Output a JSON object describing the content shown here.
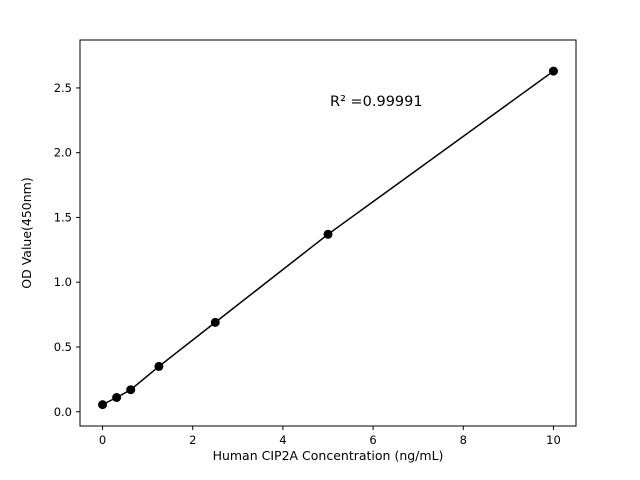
{
  "figure": {
    "background": "#ffffff"
  },
  "chart_data": {
    "type": "scatter",
    "title": "",
    "xlabel": "Human CIP2A Concentration (ng/mL)",
    "ylabel": "OD Value(450nm)",
    "x": [
      0,
      0.3125,
      0.625,
      1.25,
      2.5,
      5,
      10
    ],
    "y": [
      0.055,
      0.11,
      0.17,
      0.35,
      0.69,
      1.37,
      2.63
    ],
    "fit_line": {
      "show": true,
      "style": "solid",
      "width": 1.5
    },
    "annotation": {
      "text": "R² =0.99991",
      "x_frac": 0.504,
      "y_frac_top": 0.168
    },
    "xlim": [
      -0.5,
      10.5
    ],
    "ylim": [
      -0.11,
      2.87
    ],
    "xticks": [
      0,
      2,
      4,
      6,
      8,
      10
    ],
    "xtick_labels": [
      "0",
      "2",
      "4",
      "6",
      "8",
      "10"
    ],
    "yticks": [
      0,
      0.5,
      1.0,
      1.5,
      2.0,
      2.5
    ],
    "ytick_labels": [
      "0.0",
      "0.5",
      "1.0",
      "1.5",
      "2.0",
      "2.5"
    ],
    "marker_color": "#000000",
    "marker_radius": 4.5,
    "line_color": "#000000",
    "axis_color": "#000000",
    "grid": false,
    "legend": null
  }
}
